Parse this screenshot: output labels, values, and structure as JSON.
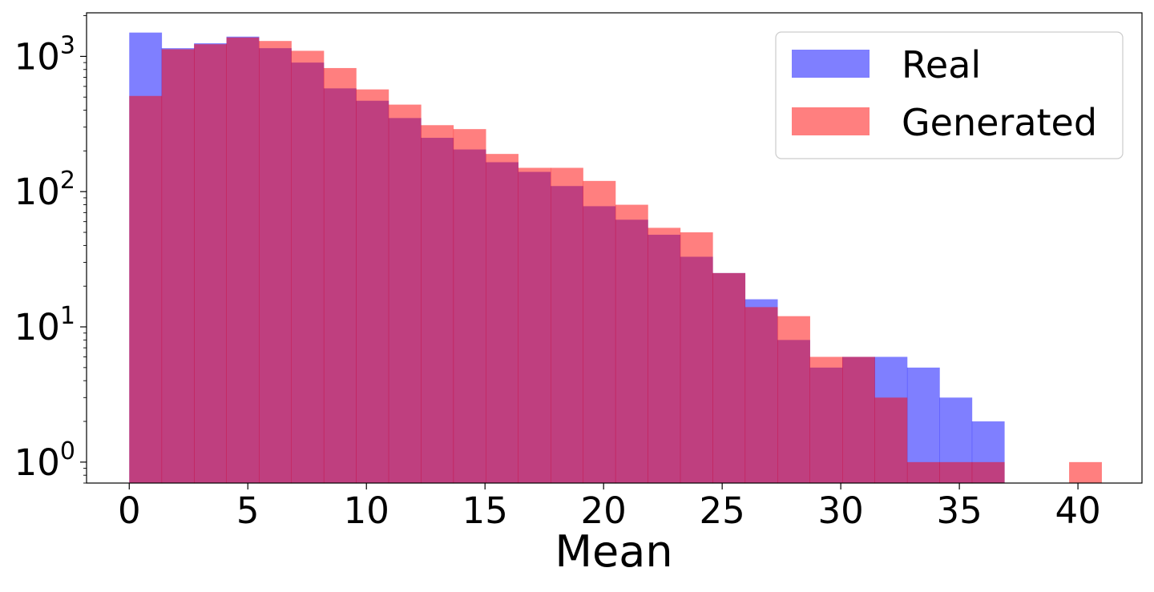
{
  "chart_data": {
    "type": "bar",
    "subtype": "overlaid-histogram",
    "title": "",
    "xlabel": "Mean",
    "ylabel": "",
    "yscale": "log",
    "xlim": [
      -1.8,
      42.7
    ],
    "ylim": [
      0.7,
      2100
    ],
    "x_ticks": [
      0,
      5,
      10,
      15,
      20,
      25,
      30,
      35,
      40
    ],
    "x_tick_labels": [
      "0",
      "5",
      "10",
      "15",
      "20",
      "25",
      "30",
      "35",
      "40"
    ],
    "y_ticks": [
      1,
      10,
      100,
      1000
    ],
    "y_tick_labels": [
      {
        "base": "10",
        "exp": "0"
      },
      {
        "base": "10",
        "exp": "1"
      },
      {
        "base": "10",
        "exp": "2"
      },
      {
        "base": "10",
        "exp": "3"
      }
    ],
    "bin_edges": [
      0.0,
      1.366,
      2.733,
      4.099,
      5.466,
      6.832,
      8.199,
      9.565,
      10.932,
      12.298,
      13.665,
      15.031,
      16.398,
      17.764,
      19.131,
      20.497,
      21.864,
      23.23,
      24.597,
      25.963,
      27.33,
      28.696,
      30.063,
      31.429,
      32.796,
      34.162,
      35.529,
      36.895,
      38.262,
      39.628,
      40.995
    ],
    "grid": false,
    "legend_position": "top-right",
    "series": [
      {
        "name": "Real",
        "color": "#0000ff",
        "opacity": 0.5,
        "values": [
          1500,
          1150,
          1250,
          1400,
          1150,
          900,
          580,
          470,
          350,
          250,
          205,
          165,
          140,
          110,
          78,
          62,
          48,
          33,
          25,
          16,
          8,
          5,
          6,
          6,
          5,
          3,
          2,
          0,
          0,
          0
        ]
      },
      {
        "name": "Generated",
        "color": "#ff0000",
        "opacity": 0.5,
        "values": [
          510,
          1130,
          1230,
          1380,
          1300,
          1100,
          820,
          570,
          440,
          310,
          290,
          190,
          150,
          150,
          120,
          80,
          54,
          50,
          25,
          14,
          12,
          6,
          6,
          3,
          1,
          1,
          1,
          0,
          0,
          1
        ]
      }
    ],
    "colors": {
      "overlap": "#bf3f7f",
      "axis": "#000000",
      "legend_border": "#cccccc"
    }
  }
}
